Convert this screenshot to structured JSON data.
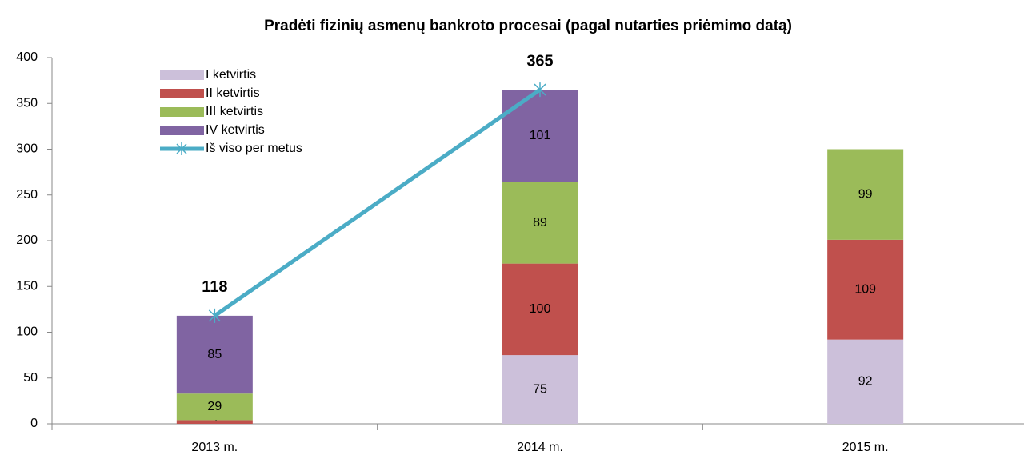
{
  "chart_data": {
    "type": "bar",
    "title": "Pradėti fizinių asmenų bankroto procesai (pagal nutarties priėmimo datą)",
    "categories": [
      "2013 m.",
      "2014 m.",
      "2015 m."
    ],
    "series": [
      {
        "name": "I ketvirtis",
        "color": "#ccc0da",
        "values": [
          null,
          75,
          92
        ]
      },
      {
        "name": "II ketvirtis",
        "color": "#c0504d",
        "values": [
          4,
          100,
          109
        ]
      },
      {
        "name": "III ketvirtis",
        "color": "#9bbb59",
        "values": [
          29,
          89,
          99
        ]
      },
      {
        "name": "IV ketvirtis",
        "color": "#8064a2",
        "values": [
          85,
          101,
          null
        ]
      },
      {
        "name": "Iš viso per metus",
        "color": "#4bacc6",
        "type": "line",
        "values": [
          118,
          365,
          null
        ]
      }
    ],
    "ylim": [
      0,
      400
    ],
    "yticks": [
      0,
      50,
      100,
      150,
      200,
      250,
      300,
      350,
      400
    ],
    "legend": "upper left"
  }
}
